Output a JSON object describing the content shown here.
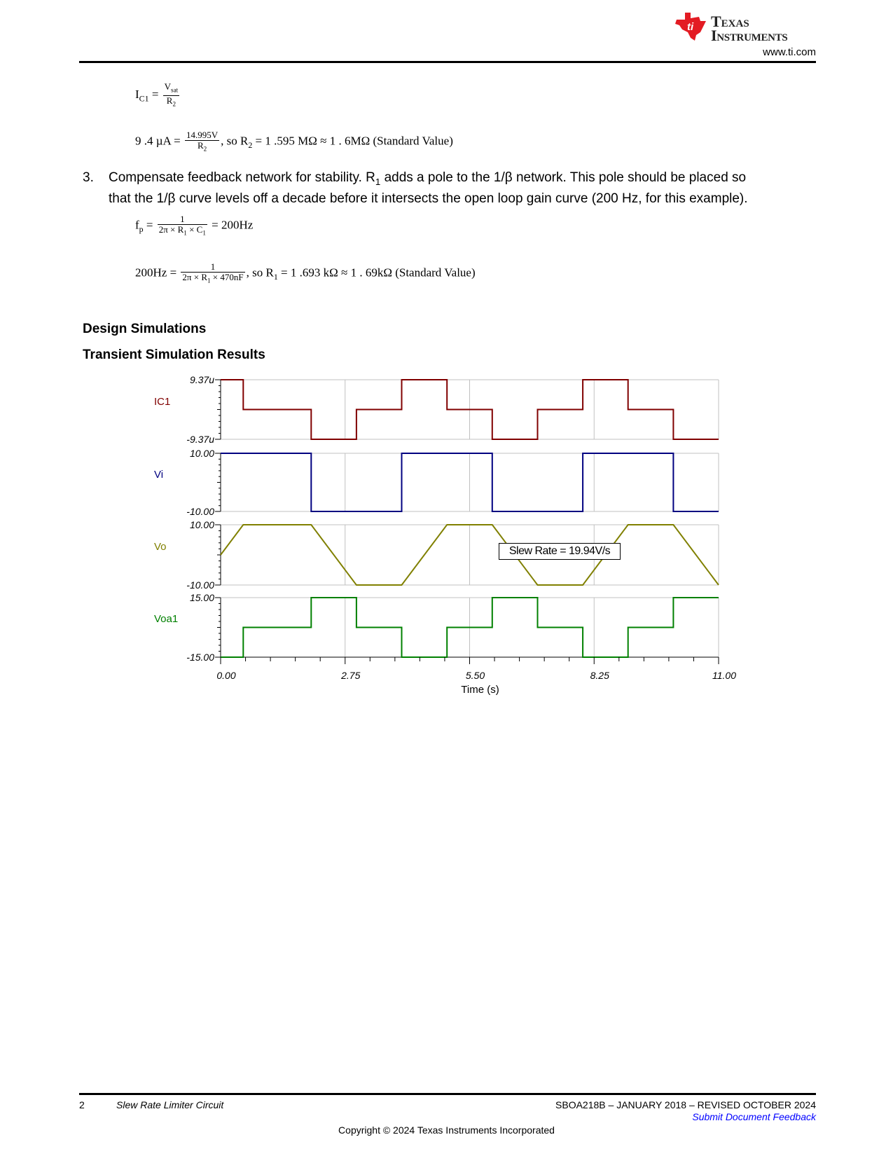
{
  "header": {
    "logo_line1": "Texas",
    "logo_line2": "Instruments",
    "url": "www.ti.com"
  },
  "equations": {
    "eq1": {
      "lhs": "I",
      "lhs_sub": "C1",
      "eq": "=",
      "num": "V",
      "num_sub": "sat",
      "den": "R",
      "den_sub": "2"
    },
    "eq2": {
      "lhs": "9 .4 µA =",
      "num": "14.995V",
      "den": "R",
      "den_sub": "2",
      "rest1": ", so R",
      "rest_sub": "2",
      "rest2": " = 1 .595 MΩ ≈ 1 . 6MΩ (Standard Value)"
    },
    "eq3": {
      "lhs": "f",
      "lhs_sub": "p",
      "eq": "=",
      "num": "1",
      "den": "2π × R",
      "den_sub1": "1",
      "den_mid": " × C",
      "den_sub2": "1",
      "rest": "= 200Hz"
    },
    "eq4": {
      "lhs": "200Hz =",
      "num": "1",
      "den": "2π × R",
      "den_sub": "1",
      "den_rest": " × 470nF",
      "rest1": ", so R",
      "rest_sub": "1",
      "rest2": " = 1 .693 kΩ ≈ 1 . 69kΩ (Standard Value)"
    }
  },
  "step3": {
    "number": "3.",
    "text_a": "Compensate feedback network for stability. R",
    "text_sub": "1",
    "text_b": " adds a pole to the 1/β network. This pole should be placed so",
    "text_line2": "that the 1/β curve levels off a decade before it intersects the open loop gain curve (200 Hz, for this example)."
  },
  "headings": {
    "design_simulations": "Design Simulations",
    "transient": "Transient Simulation Results"
  },
  "chart_data": {
    "type": "line",
    "xlabel": "Time (s)",
    "xlim": [
      0,
      11
    ],
    "xticks": [
      "0.00",
      "2.75",
      "5.50",
      "8.25",
      "11.00"
    ],
    "grid": true,
    "annotation": "Slew Rate = 19.94V/s",
    "series": [
      {
        "name": "IC1",
        "color": "#800000",
        "ylim": [
          -9.37e-06,
          9.37e-06
        ],
        "yticks": [
          "9.37u",
          "-9.37u"
        ],
        "x": [
          0,
          0.5,
          0.5,
          2,
          2,
          3,
          3,
          4,
          4,
          5,
          5,
          6,
          6,
          7,
          7,
          8,
          8,
          9,
          9,
          10,
          10,
          11
        ],
        "y": [
          9.37e-06,
          9.37e-06,
          0,
          0,
          -9.37e-06,
          -9.37e-06,
          0,
          0,
          9.37e-06,
          9.37e-06,
          0,
          0,
          -9.37e-06,
          -9.37e-06,
          0,
          0,
          9.37e-06,
          9.37e-06,
          0,
          0,
          -9.37e-06,
          -9.37e-06
        ]
      },
      {
        "name": "Vi",
        "color": "#000080",
        "ylim": [
          -10,
          10
        ],
        "yticks": [
          "10.00",
          "-10.00"
        ],
        "x": [
          0,
          2,
          2,
          4,
          4,
          6,
          6,
          8,
          8,
          10,
          10,
          11
        ],
        "y": [
          10,
          10,
          -10,
          -10,
          10,
          10,
          -10,
          -10,
          10,
          10,
          -10,
          -10
        ]
      },
      {
        "name": "Vo",
        "color": "#808000",
        "ylim": [
          -10,
          10
        ],
        "yticks": [
          "10.00",
          "-10.00"
        ],
        "x": [
          0,
          0.5,
          2,
          3,
          4,
          5,
          6,
          7,
          8,
          9,
          10,
          11
        ],
        "y": [
          0,
          10,
          10,
          -10,
          -10,
          10,
          10,
          -10,
          -10,
          10,
          10,
          -10
        ]
      },
      {
        "name": "Voa1",
        "color": "#008000",
        "ylim": [
          -15,
          15
        ],
        "yticks": [
          "15.00",
          "-15.00"
        ],
        "x": [
          0,
          0.5,
          0.5,
          2,
          2,
          3,
          3,
          4,
          4,
          5,
          5,
          6,
          6,
          7,
          7,
          8,
          8,
          9,
          9,
          10,
          10,
          11
        ],
        "y": [
          -15,
          -15,
          0,
          0,
          15,
          15,
          0,
          0,
          -15,
          -15,
          0,
          0,
          15,
          15,
          0,
          0,
          -15,
          -15,
          0,
          0,
          15,
          15
        ]
      }
    ]
  },
  "footer": {
    "page_number": "2",
    "doc_title": "Slew Rate Limiter Circuit",
    "doc_id": "SBOA218B – JANUARY 2018 – REVISED OCTOBER 2024",
    "feedback_link": "Submit Document Feedback",
    "copyright": "Copyright © 2024 Texas Instruments Incorporated",
    "link_color": "#0000ff"
  }
}
